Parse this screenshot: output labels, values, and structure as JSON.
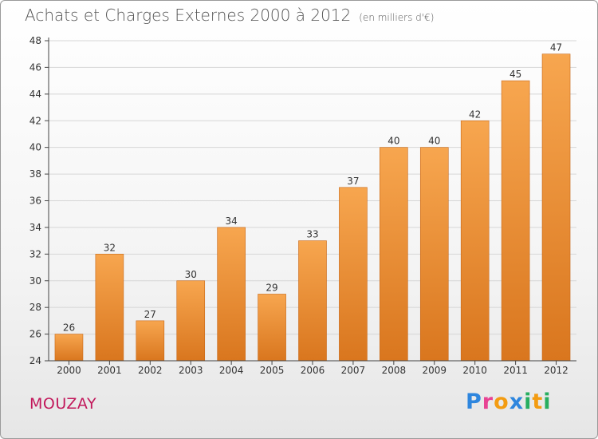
{
  "header": {
    "title": "Achats et Charges Externes 2000 à 2012",
    "subtitle": "(en milliers d'€)"
  },
  "footer": {
    "place": "MOUZAY",
    "logo_letters": [
      "P",
      "r",
      "o",
      "x",
      "i",
      "t",
      "i"
    ],
    "logo_colors": [
      "#2e86de",
      "#e84393",
      "#f39c12",
      "#2e86de",
      "#27ae60",
      "#f39c12",
      "#27ae60"
    ]
  },
  "colors": {
    "bar_top": "#f7a64f",
    "bar_bottom": "#d9761e",
    "bar_edge": "#c86818",
    "grid": "#d6d6d6",
    "axis": "#444444"
  },
  "chart_data": {
    "type": "bar",
    "title": "Achats et Charges Externes 2000 à 2012",
    "subtitle": "(en milliers d'€)",
    "categories": [
      "2000",
      "2001",
      "2002",
      "2003",
      "2004",
      "2005",
      "2006",
      "2007",
      "2008",
      "2009",
      "2010",
      "2011",
      "2012"
    ],
    "values": [
      26,
      32,
      27,
      30,
      34,
      29,
      33,
      37,
      40,
      40,
      42,
      45,
      47
    ],
    "ylim": [
      24,
      48
    ],
    "yticks": [
      24,
      26,
      28,
      30,
      32,
      34,
      36,
      38,
      40,
      42,
      44,
      46,
      48
    ],
    "grid": true
  }
}
